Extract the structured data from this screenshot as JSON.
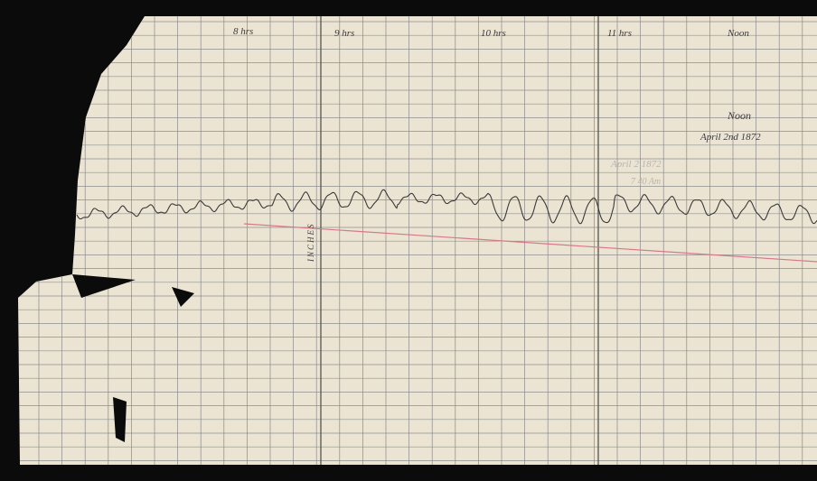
{
  "hour_labels": [
    "8 hrs",
    "9 hrs",
    "10 hrs",
    "11 hrs",
    "Noon"
  ],
  "axis_label": "INCHES",
  "annotations": {
    "noon": "Noon",
    "date": "April 2nd 1872",
    "pencil_date": "April 2 1872",
    "pencil_time": "7 40 Am"
  }
}
